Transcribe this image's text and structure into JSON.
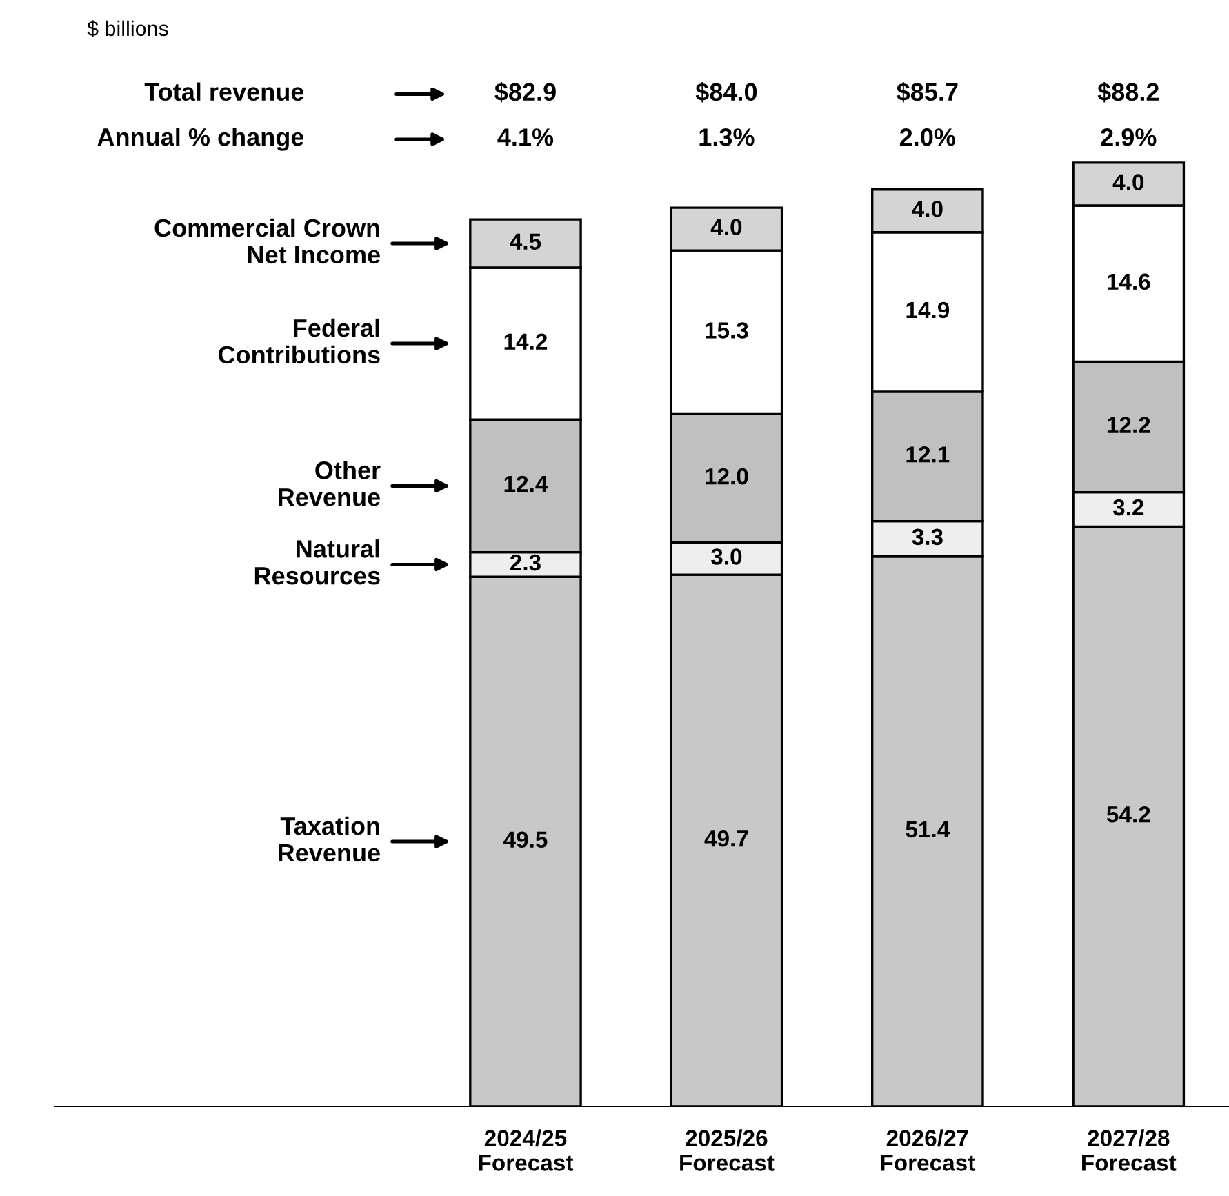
{
  "chart_data": {
    "type": "bar",
    "stacked": true,
    "legend": "left",
    "grid": false,
    "categories": [
      "2024/25\nForecast",
      "2025/26\nForecast",
      "2026/27\nForecast",
      "2027/28\nForecast"
    ],
    "series": [
      {
        "name": "Taxation\nRevenue",
        "color": "#c8c8c8",
        "values": [
          49.5,
          49.7,
          51.4,
          54.2
        ],
        "value_labels": [
          "49.5",
          "49.7",
          "51.4",
          "54.2"
        ]
      },
      {
        "name": "Natural\nResources",
        "color": "#eeeeee",
        "values": [
          2.3,
          3.0,
          3.3,
          3.2
        ],
        "value_labels": [
          "2.3",
          "3.0",
          "3.3",
          "3.2"
        ]
      },
      {
        "name": "Other\nRevenue",
        "color": "#c0c0c0",
        "values": [
          12.4,
          12.0,
          12.1,
          12.2
        ],
        "value_labels": [
          "12.4",
          "12.0",
          "12.1",
          "12.2"
        ]
      },
      {
        "name": "Federal\nContributions",
        "color": "#ffffff",
        "values": [
          14.2,
          15.3,
          14.9,
          14.6
        ],
        "value_labels": [
          "14.2",
          "15.3",
          "14.9",
          "14.6"
        ]
      },
      {
        "name": "Commercial Crown\nNet Income",
        "color": "#d4d4d4",
        "values": [
          4.5,
          4.0,
          4.0,
          4.0
        ],
        "value_labels": [
          "4.5",
          "4.0",
          "4.0",
          "4.0"
        ]
      }
    ],
    "annotations": [
      "$ billions",
      "Total revenue",
      "$82.9",
      "$84.0",
      "$85.7",
      "$88.2",
      "Annual % change",
      "4.1%",
      "1.3%",
      "2.0%",
      "2.9%"
    ]
  }
}
